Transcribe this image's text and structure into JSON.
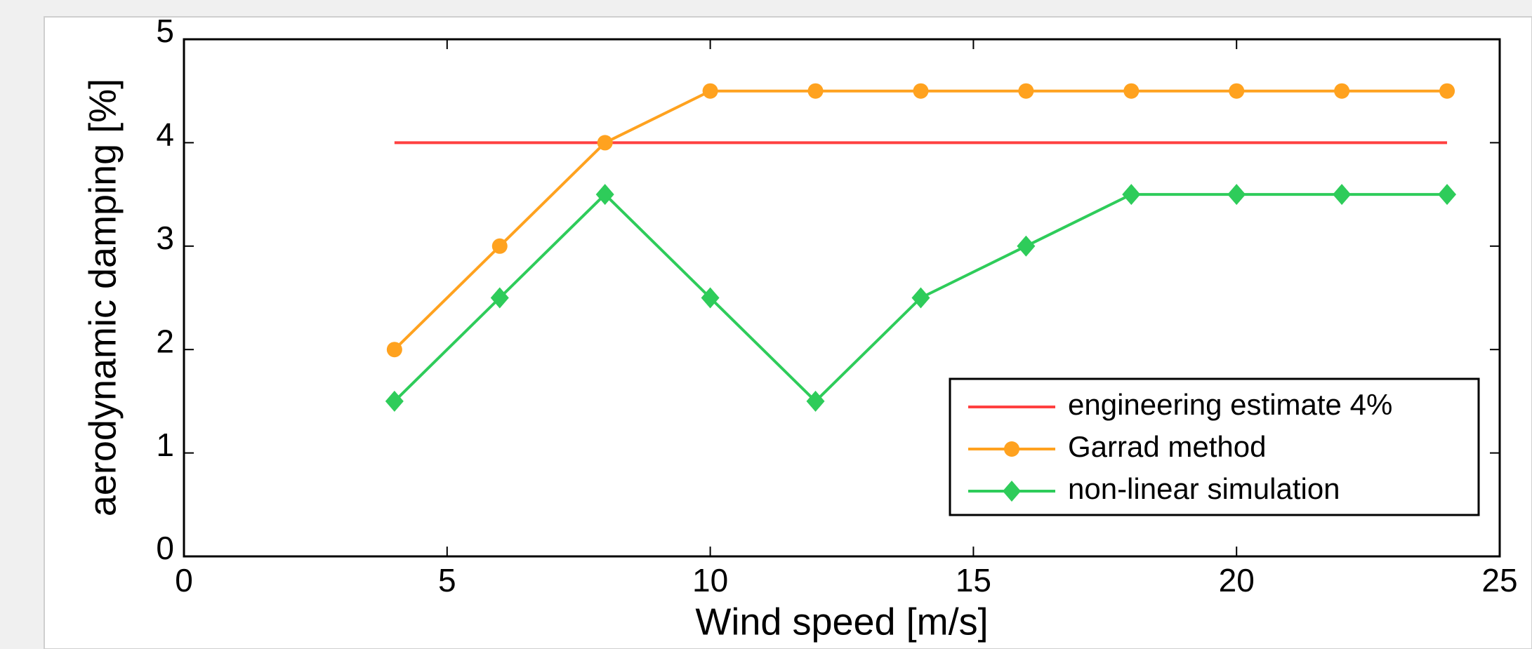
{
  "chart_data": {
    "type": "line",
    "xlabel": "Wind speed [m/s]",
    "ylabel": "aerodynamic damping [%]",
    "xlim": [
      0,
      25
    ],
    "ylim": [
      0,
      5
    ],
    "xticks": [
      0,
      5,
      10,
      15,
      20,
      25
    ],
    "yticks": [
      0,
      1,
      2,
      3,
      4,
      5
    ],
    "legend": "lower right",
    "series": [
      {
        "name": "engineering estimate 4%",
        "color": "#ff4040",
        "marker": "none",
        "x": [
          4,
          24
        ],
        "values": [
          4,
          4
        ]
      },
      {
        "name": "Garrad method",
        "color": "#ffa21f",
        "marker": "circle",
        "x": [
          4,
          6,
          8,
          10,
          12,
          14,
          16,
          18,
          20,
          22,
          24
        ],
        "values": [
          2,
          3,
          4,
          4.5,
          4.5,
          4.5,
          4.5,
          4.5,
          4.5,
          4.5,
          4.5
        ]
      },
      {
        "name": "non-linear simulation",
        "color": "#2ecc5a",
        "marker": "diamond",
        "x": [
          4,
          6,
          8,
          10,
          12,
          14,
          16,
          18,
          20,
          22,
          24
        ],
        "values": [
          1.5,
          2.5,
          3.5,
          2.5,
          1.5,
          2.5,
          3,
          3.5,
          3.5,
          3.5,
          3.5
        ]
      }
    ]
  }
}
